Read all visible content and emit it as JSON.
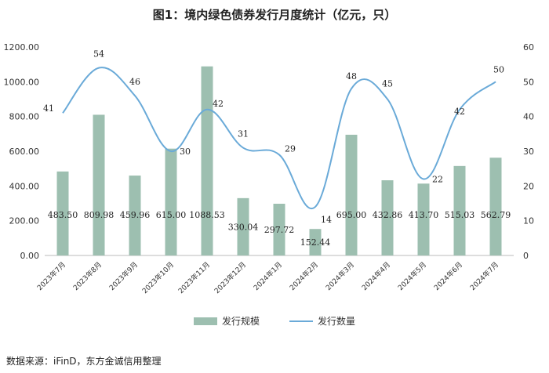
{
  "chart_data": {
    "type": "bar",
    "title": "图1：境内绿色债券发行月度统计（亿元，只）",
    "categories": [
      "2023年7月",
      "2023年8月",
      "2023年9月",
      "2023年10月",
      "2023年11月",
      "2023年12月",
      "2024年1月",
      "2024年2月",
      "2024年3月",
      "2024年4月",
      "2024年5月",
      "2024年6月",
      "2024年7月"
    ],
    "series": [
      {
        "name": "发行规模",
        "type": "bar",
        "axis": "left",
        "values": [
          483.5,
          809.98,
          459.96,
          615.0,
          1088.53,
          330.04,
          297.72,
          152.44,
          695.0,
          432.86,
          413.7,
          515.03,
          562.79
        ],
        "labels": [
          "483.50",
          "809.98",
          "459.96",
          "615.00",
          "1088.53",
          "330.04",
          "297.72",
          "152.44",
          "695.00",
          "432.86",
          "413.70",
          "515.03",
          "562.79"
        ],
        "color": "#9dbfb0"
      },
      {
        "name": "发行数量",
        "type": "line",
        "axis": "right",
        "values": [
          41,
          54,
          46,
          30,
          42,
          31,
          29,
          14,
          48,
          45,
          22,
          42,
          50
        ],
        "color": "#6aaad8"
      }
    ],
    "left_axis": {
      "range": [
        0,
        1200
      ],
      "ticks": [
        "0.00",
        "200.00",
        "400.00",
        "600.00",
        "800.00",
        "1000.00",
        "1200.00"
      ]
    },
    "right_axis": {
      "range": [
        0,
        60
      ],
      "ticks": [
        "0",
        "10",
        "20",
        "30",
        "40",
        "50",
        "60"
      ]
    },
    "grid": false,
    "legend": "bottom"
  },
  "source": "数据来源：iFinD，东方金诚信用整理"
}
